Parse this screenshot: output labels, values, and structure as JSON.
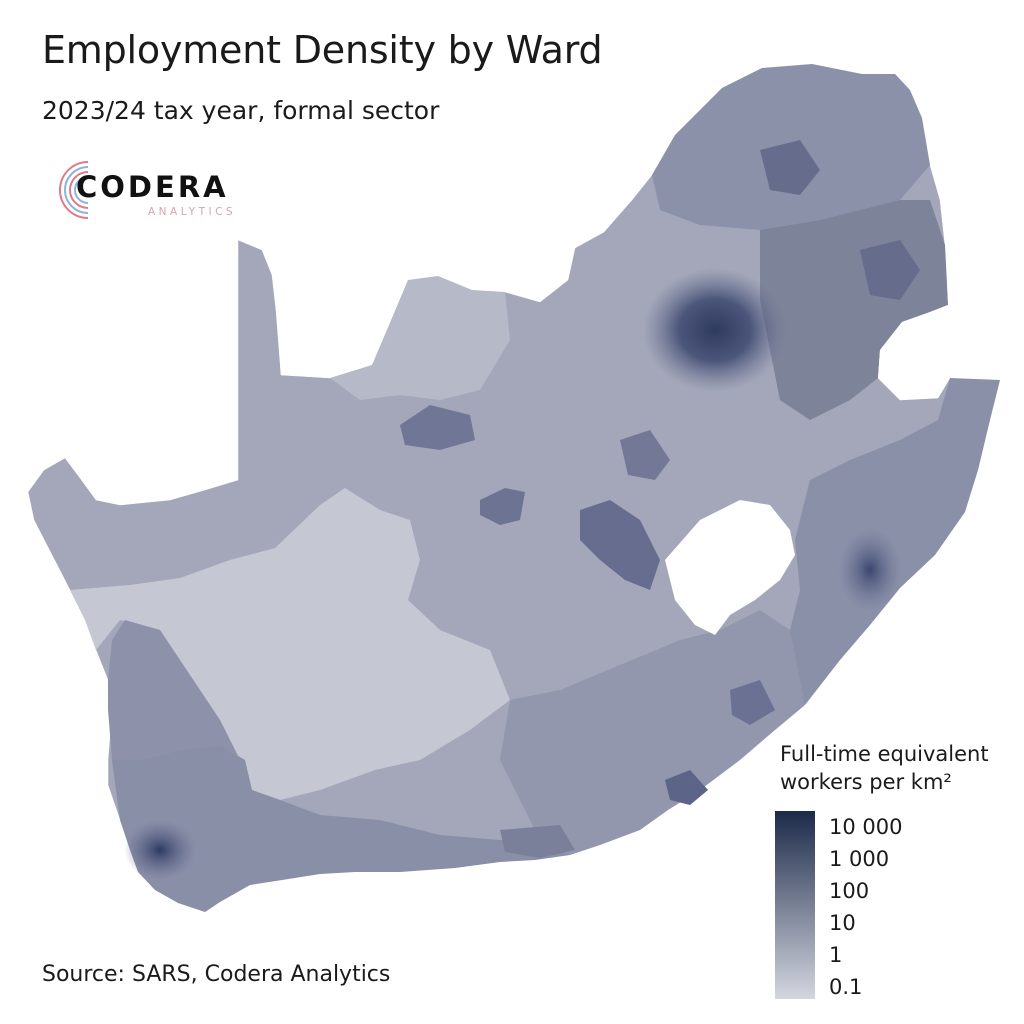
{
  "title": "Employment Density by Ward",
  "subtitle": "2023/24 tax year, formal sector",
  "logo": {
    "name": "CODERA",
    "tagline": "ANALYTICS"
  },
  "source": "Source: SARS, Codera Analytics",
  "legend": {
    "title_line1": "Full-time equivalent",
    "title_line2": "workers per km²",
    "labels": [
      "10 000",
      "1 000",
      "100",
      "10",
      "1",
      "0.1"
    ],
    "values": [
      10000,
      1000,
      100,
      10,
      1,
      0.1
    ],
    "scale": "log",
    "color_low": "#d4d6df",
    "color_high": "#1c2a4a"
  },
  "colors": {
    "land_base": "#a3a7b9",
    "land_light": "#c6c8d4",
    "land_dark": "#6c7393",
    "metro_dark": "#3a4669",
    "lesotho": "#ffffff"
  }
}
